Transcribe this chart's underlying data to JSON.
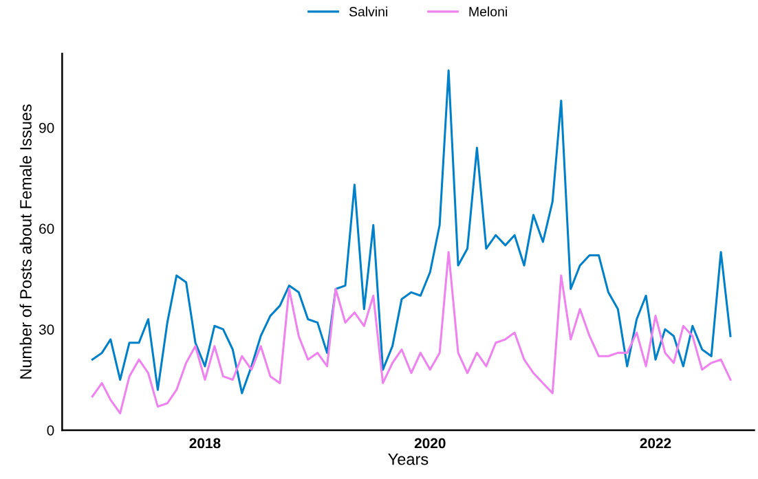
{
  "chart_data": {
    "type": "line",
    "xlabel": "Years",
    "ylabel": "Number of Posts about Female Issues",
    "x": [
      "2017-01",
      "2017-02",
      "2017-03",
      "2017-04",
      "2017-05",
      "2017-06",
      "2017-07",
      "2017-08",
      "2017-09",
      "2017-10",
      "2017-11",
      "2017-12",
      "2018-01",
      "2018-02",
      "2018-03",
      "2018-04",
      "2018-05",
      "2018-06",
      "2018-07",
      "2018-08",
      "2018-09",
      "2018-10",
      "2018-11",
      "2018-12",
      "2019-01",
      "2019-02",
      "2019-03",
      "2019-04",
      "2019-05",
      "2019-06",
      "2019-07",
      "2019-08",
      "2019-09",
      "2019-10",
      "2019-11",
      "2019-12",
      "2020-01",
      "2020-02",
      "2020-03",
      "2020-04",
      "2020-05",
      "2020-06",
      "2020-07",
      "2020-08",
      "2020-09",
      "2020-10",
      "2020-11",
      "2020-12",
      "2021-01",
      "2021-02",
      "2021-03",
      "2021-04",
      "2021-05",
      "2021-06",
      "2021-07",
      "2021-08",
      "2021-09",
      "2021-10",
      "2021-11",
      "2021-12",
      "2022-01",
      "2022-02",
      "2022-03",
      "2022-04",
      "2022-05",
      "2022-06",
      "2022-07",
      "2022-08",
      "2022-09"
    ],
    "series": [
      {
        "name": "Salvini",
        "color": "#0080c8",
        "values": [
          21,
          23,
          27,
          15,
          26,
          26,
          33,
          12,
          32,
          46,
          44,
          26,
          19,
          31,
          30,
          24,
          11,
          19,
          28,
          34,
          37,
          43,
          41,
          33,
          32,
          23,
          42,
          43,
          73,
          36,
          61,
          18,
          25,
          39,
          41,
          40,
          47,
          61,
          107,
          49,
          54,
          84,
          54,
          58,
          55,
          58,
          49,
          64,
          56,
          68,
          98,
          42,
          49,
          52,
          52,
          41,
          36,
          19,
          33,
          40,
          21,
          30,
          28,
          19,
          31,
          24,
          22,
          53,
          28
        ]
      },
      {
        "name": "Meloni",
        "color": "#ee82ee",
        "values": [
          10,
          14,
          9,
          5,
          16,
          21,
          17,
          7,
          8,
          12,
          20,
          25,
          15,
          25,
          16,
          15,
          22,
          18,
          25,
          16,
          14,
          42,
          28,
          21,
          23,
          19,
          42,
          32,
          35,
          31,
          40,
          14,
          20,
          24,
          17,
          23,
          18,
          23,
          53,
          23,
          17,
          23,
          19,
          26,
          27,
          29,
          21,
          17,
          14,
          11,
          46,
          27,
          36,
          28,
          22,
          22,
          23,
          23,
          29,
          19,
          34,
          23,
          20,
          31,
          28,
          18,
          20,
          21,
          15
        ]
      }
    ],
    "xlim": [
      "2016-09-25",
      "2022-11-17"
    ],
    "xticks": [
      "2018",
      "2020",
      "2022"
    ],
    "ylim": [
      0,
      112
    ],
    "yticks": [
      0,
      30,
      60,
      90
    ],
    "grid": false,
    "legend": "top",
    "marker": "none",
    "line_style": "solid"
  }
}
